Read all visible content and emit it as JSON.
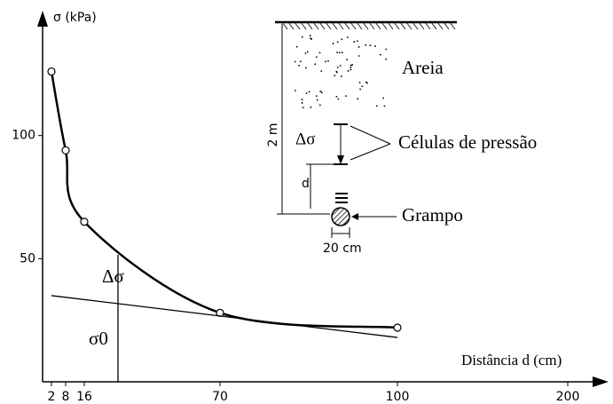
{
  "chart_data": {
    "type": "line",
    "y_label": "σ (kPa)",
    "x_label": "Distância d (cm)",
    "x": [
      2,
      8,
      16,
      70,
      100
    ],
    "series": [
      {
        "color": "#000000",
        "values": [
          126,
          94,
          65,
          28,
          22
        ],
        "markers": true
      },
      {
        "color": "#000000",
        "x": [
          2,
          100
        ],
        "values": [
          35,
          18
        ],
        "markers": false
      }
    ],
    "xlim": [
      0,
      220
    ],
    "xticks": [
      2,
      8,
      16,
      70,
      100,
      200
    ],
    "ylim": [
      0,
      150
    ],
    "yticks": [
      50,
      100
    ],
    "annotations": [
      "Δσ",
      "σ0"
    ],
    "inset": [
      "Areia",
      "Células de pressão",
      "Grampo",
      "2 m",
      "Δσ",
      "d",
      "20 cm"
    ]
  }
}
